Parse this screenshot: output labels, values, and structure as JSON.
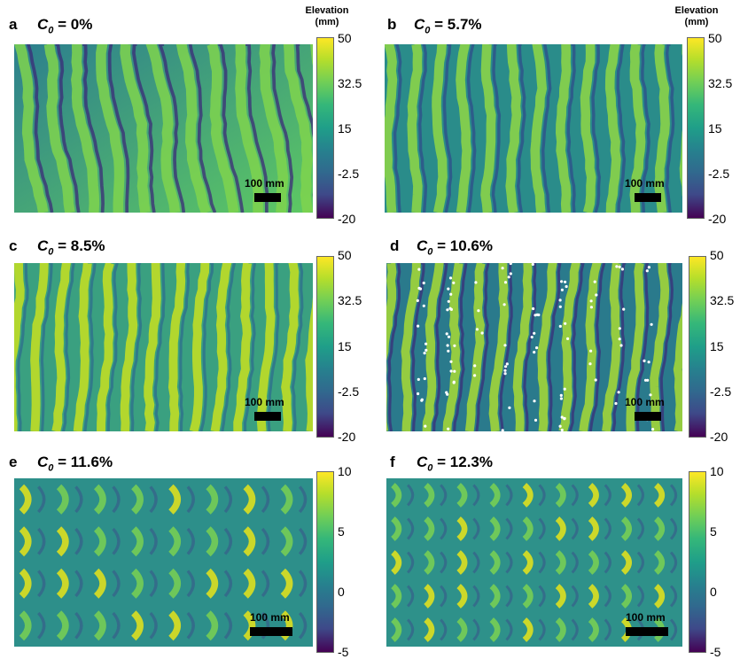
{
  "figure": {
    "colorbar_title_line1": "Elevation",
    "colorbar_title_line2": "(mm)",
    "panels": [
      {
        "letter": "a",
        "c_symbol": "C",
        "c_sub": "0",
        "value": "= 0%",
        "ticks": [
          "50",
          "32.5",
          "15",
          "-2.5",
          "-20"
        ],
        "scale_label": "100 mm"
      },
      {
        "letter": "b",
        "c_symbol": "C",
        "c_sub": "0",
        "value": "= 5.7%",
        "ticks": [
          "50",
          "32.5",
          "15",
          "-2.5",
          "-20"
        ],
        "scale_label": "100 mm"
      },
      {
        "letter": "c",
        "c_symbol": "C",
        "c_sub": "0",
        "value": "= 8.5%",
        "ticks": [
          "50",
          "32.5",
          "15",
          "-2.5",
          "-20"
        ],
        "scale_label": "100 mm"
      },
      {
        "letter": "d",
        "c_symbol": "C",
        "c_sub": "0",
        "value": "= 10.6%",
        "ticks": [
          "50",
          "32.5",
          "15",
          "-2.5",
          "-20"
        ],
        "scale_label": "100 mm"
      },
      {
        "letter": "e",
        "c_symbol": "C",
        "c_sub": "0",
        "value": "= 11.6%",
        "ticks": [
          "10",
          "5",
          "0",
          "-5"
        ],
        "scale_label": "100 mm"
      },
      {
        "letter": "f",
        "c_symbol": "C",
        "c_sub": "0",
        "value": "= 12.3%",
        "ticks": [
          "10",
          "5",
          "0",
          "-5"
        ],
        "scale_label": "100 mm"
      }
    ],
    "colors": {
      "low": "#440154",
      "mid": "#21918c",
      "high": "#fde725",
      "dots": "#ffffff"
    }
  }
}
